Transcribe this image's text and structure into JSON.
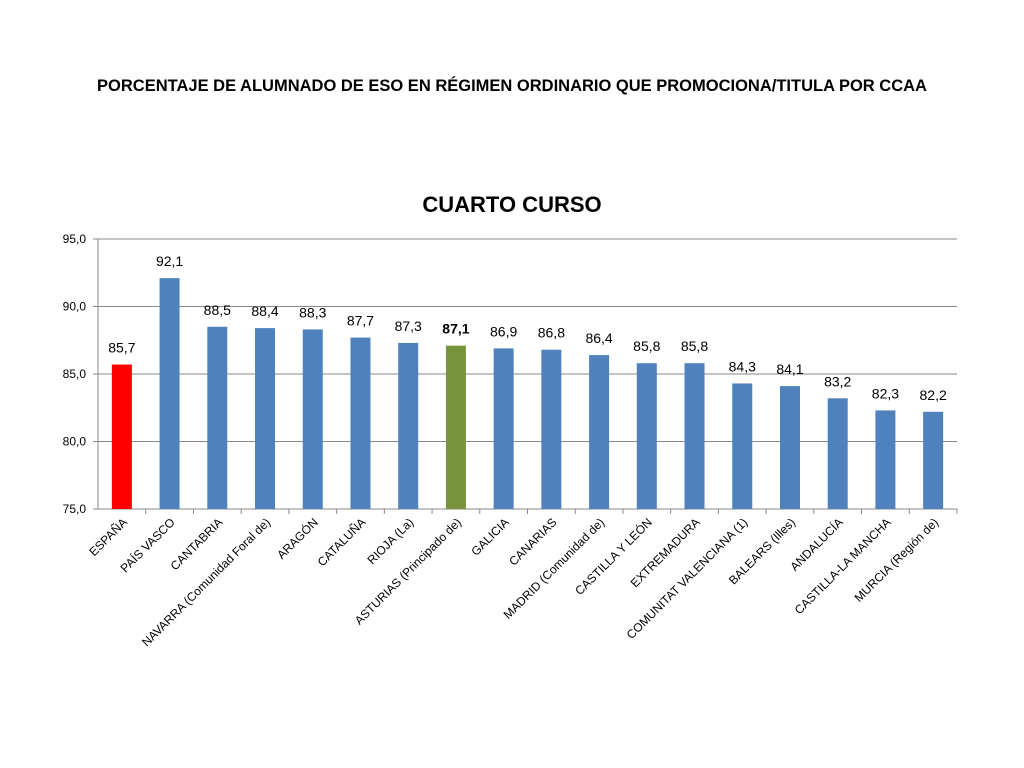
{
  "slide": {
    "title": "PORCENTAJE DE ALUMNADO DE ESO EN RÉGIMEN ORDINARIO QUE PROMOCIONA/TITULA POR CCAA"
  },
  "chart_data": {
    "type": "bar",
    "title": "CUARTO CURSO",
    "xlabel": "",
    "ylabel": "",
    "ylim": [
      75,
      95
    ],
    "yticks": [
      "75,0",
      "80,0",
      "85,0",
      "90,0",
      "95,0"
    ],
    "grid": true,
    "legend": "none",
    "categories": [
      "ESPAÑA",
      "PAÍS VASCO",
      "CANTABRIA",
      "NAVARRA (Comunidad Foral de)",
      "ARAGÓN",
      "CATALUÑA",
      "RIOJA (La)",
      "ASTURIAS (Principado de)",
      "GALICIA",
      "CANARIAS",
      "MADRID (Comunidad de)",
      "CASTILLA Y LEÓN",
      "EXTREMADURA",
      "COMUNITAT VALENCIANA (1)",
      "BALEARS (Illes)",
      "ANDALUCÍA",
      "CASTILLA-LA MANCHA",
      "MURCIA (Región de)"
    ],
    "values": [
      85.7,
      92.1,
      88.5,
      88.4,
      88.3,
      87.7,
      87.3,
      87.1,
      86.9,
      86.8,
      86.4,
      85.8,
      85.8,
      84.3,
      84.1,
      83.2,
      82.3,
      82.2
    ],
    "data_labels": [
      "85,7",
      "92,1",
      "88,5",
      "88,4",
      "88,3",
      "87,7",
      "87,3",
      "87,1",
      "86,9",
      "86,8",
      "86,4",
      "85,8",
      "85,8",
      "84,3",
      "84,1",
      "83,2",
      "82,3",
      "82,2"
    ],
    "bar_colors": [
      "#ff0000",
      "#4f81bd",
      "#4f81bd",
      "#4f81bd",
      "#4f81bd",
      "#4f81bd",
      "#4f81bd",
      "#77933c",
      "#4f81bd",
      "#4f81bd",
      "#4f81bd",
      "#4f81bd",
      "#4f81bd",
      "#4f81bd",
      "#4f81bd",
      "#4f81bd",
      "#4f81bd",
      "#4f81bd"
    ],
    "bold_label_index": 7,
    "colors": {
      "default": "#4f81bd",
      "highlight_spain": "#ff0000",
      "highlight_asturias": "#77933c",
      "grid": "#888888"
    }
  }
}
